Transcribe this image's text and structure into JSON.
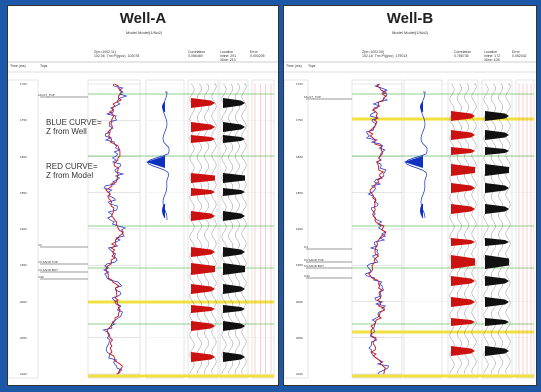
{
  "panels": [
    {
      "title": "Well-A",
      "subtitle": "Model Model(1/No2)",
      "annotation_blue": "BLUE CURVE=\nZ from Well",
      "annotation_red": "RED CURVE=\nZ from Model",
      "headers": {
        "time": "Time (ms)",
        "tops": "Tops",
        "log": "Z(m=1002.11)\n102.06  Tm=Pl(g/cc)  102078",
        "corr": "Correlation\n0.056469",
        "loc": "Location\nInline: 291\nXline: 213",
        "error": "Error\n0.000205"
      },
      "ticks": [
        "1700",
        "1750",
        "1800",
        "1850",
        "1900",
        "1950",
        "2000",
        "2050",
        "2100"
      ],
      "tops": [
        "FAULT_TOP",
        "K4",
        "KV.SAND TOP",
        "KV.SAND BOT",
        "K4D"
      ]
    },
    {
      "title": "Well-B",
      "subtitle": "Model Model(1/No2)",
      "annotation_blue": "",
      "annotation_red": "",
      "headers": {
        "time": "Time (ms)",
        "tops": "Tops",
        "log": "Z(m=1002.00)\n102.18  Tm=Pl(g/cc)  179013",
        "corr": "Correlation\n0.786735",
        "loc": "Location\nInline: 172\nXline: 108",
        "error": "Error\n0.052042"
      },
      "ticks": [
        "1700",
        "1750",
        "1800",
        "1850",
        "1900",
        "1950",
        "2000",
        "2050",
        "2100"
      ],
      "tops": [
        "FAULT_TOP",
        "K4",
        "KV.SAND TOP",
        "KV.SAND BOT",
        "K4D"
      ]
    }
  ],
  "colors": {
    "background": "#1d57a8",
    "blue_curve": "#1a2fd0",
    "red_curve": "#cc1111",
    "wavelet": "#1030c0",
    "marker_green": "#66c066",
    "marker_yellow": "#f0e040"
  }
}
